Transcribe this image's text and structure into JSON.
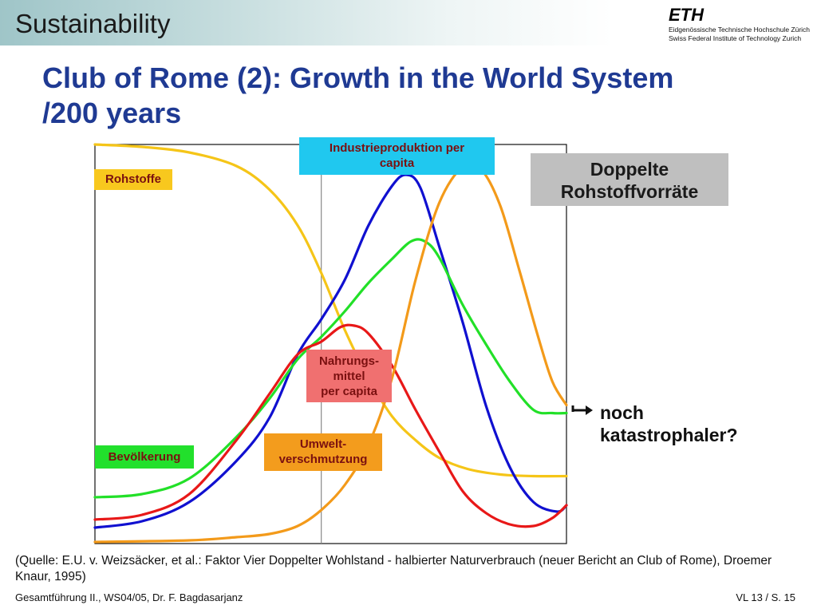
{
  "header": {
    "course_title": "Sustainability",
    "logo": {
      "name": "ETH",
      "line1": "Eidgenössische Technische Hochschule Zürich",
      "line2": "Swiss Federal Institute of Technology Zurich"
    }
  },
  "slide": {
    "title_line1": "Club of Rome (2): Growth in the World System",
    "title_line2": "/200 years"
  },
  "callouts": {
    "doppelte_line1": "Doppelte",
    "doppelte_line2": "Rohstoffvorräte",
    "noch_line1": "noch",
    "noch_line2": "katastrophaler?"
  },
  "chart_data": {
    "type": "line",
    "xlim": [
      0,
      100
    ],
    "ylim": [
      0,
      100
    ],
    "marker_x": 48,
    "grid": false,
    "labels": {
      "rohstoffe": "Rohstoffe",
      "industrie_line1": "Industrieproduktion per",
      "industrie_line2": "capita",
      "nahrung_line1": "Nahrungs-",
      "nahrung_line2": "mittel",
      "nahrung_line3": "per capita",
      "umwelt_line1": "Umwelt-",
      "umwelt_line2": "verschmutzung",
      "bevoelkerung": "Bevölkerung"
    },
    "series": [
      {
        "key": "rohstoffe",
        "color": "#f5c518",
        "points": [
          [
            0,
            100
          ],
          [
            10,
            99.4
          ],
          [
            20,
            98
          ],
          [
            30,
            94.6
          ],
          [
            37,
            88.7
          ],
          [
            43,
            79.7
          ],
          [
            48,
            67.8
          ],
          [
            53,
            53.5
          ],
          [
            58,
            41.5
          ],
          [
            63,
            31.9
          ],
          [
            68,
            25.9
          ],
          [
            73,
            21.5
          ],
          [
            79,
            18.7
          ],
          [
            86,
            17.3
          ],
          [
            93,
            16.9
          ],
          [
            100,
            16.9
          ]
        ]
      },
      {
        "key": "industrieproduktion",
        "color": "#1010d0",
        "points": [
          [
            0,
            4
          ],
          [
            10,
            5.6
          ],
          [
            20,
            10.4
          ],
          [
            30,
            20.7
          ],
          [
            37,
            31.5
          ],
          [
            43,
            47.4
          ],
          [
            48,
            56.2
          ],
          [
            53,
            66.1
          ],
          [
            58,
            79.7
          ],
          [
            63,
            89.6
          ],
          [
            66,
            92.4
          ],
          [
            69,
            89.2
          ],
          [
            73,
            74.5
          ],
          [
            78,
            55.4
          ],
          [
            83,
            34.3
          ],
          [
            88,
            19.1
          ],
          [
            93,
            10.4
          ],
          [
            98,
            8
          ],
          [
            100,
            9.6
          ]
        ]
      },
      {
        "key": "bevoelkerung",
        "color": "#22e028",
        "points": [
          [
            0,
            11.6
          ],
          [
            10,
            12.4
          ],
          [
            20,
            16.3
          ],
          [
            30,
            26.7
          ],
          [
            37,
            36.3
          ],
          [
            43,
            46.2
          ],
          [
            48,
            51.8
          ],
          [
            53,
            58.2
          ],
          [
            58,
            65.3
          ],
          [
            63,
            71.3
          ],
          [
            67,
            75.7
          ],
          [
            70,
            75.7
          ],
          [
            73,
            71.7
          ],
          [
            78,
            59.8
          ],
          [
            83,
            49.8
          ],
          [
            88,
            40.6
          ],
          [
            93,
            33.5
          ],
          [
            97,
            32.7
          ],
          [
            100,
            32.7
          ]
        ]
      },
      {
        "key": "nahrungsmittel",
        "color": "#e81818",
        "points": [
          [
            0,
            6
          ],
          [
            10,
            7.2
          ],
          [
            20,
            12.4
          ],
          [
            30,
            25.9
          ],
          [
            37,
            37.5
          ],
          [
            43,
            47.4
          ],
          [
            48,
            50.6
          ],
          [
            52,
            54.2
          ],
          [
            55,
            54.6
          ],
          [
            58,
            52.6
          ],
          [
            63,
            44.6
          ],
          [
            68,
            33.5
          ],
          [
            73,
            23.1
          ],
          [
            78,
            13.1
          ],
          [
            83,
            7.6
          ],
          [
            88,
            4.8
          ],
          [
            93,
            4.4
          ],
          [
            97,
            6.4
          ],
          [
            100,
            9.6
          ]
        ]
      },
      {
        "key": "umweltverschmutzung",
        "color": "#f39a1a",
        "points": [
          [
            0,
            0.4
          ],
          [
            20,
            0.8
          ],
          [
            30,
            1.6
          ],
          [
            37,
            2.4
          ],
          [
            43,
            4.4
          ],
          [
            48,
            8.4
          ],
          [
            53,
            14.7
          ],
          [
            58,
            24.7
          ],
          [
            63,
            41.4
          ],
          [
            68,
            66.1
          ],
          [
            73,
            85.3
          ],
          [
            78,
            94.4
          ],
          [
            82,
            93.6
          ],
          [
            86,
            84.5
          ],
          [
            90,
            68.5
          ],
          [
            94,
            51.8
          ],
          [
            97,
            40.6
          ],
          [
            100,
            34.7
          ]
        ]
      }
    ]
  },
  "footer": {
    "source_text": "(Quelle: E.U. v. Weizsäcker, et al.: Faktor Vier Doppelter Wohlstand - halbierter Naturverbrauch (neuer Bericht an Club of Rome), Droemer Knaur, 1995)",
    "left": "Gesamtführung II., WS04/05, Dr. F. Bagdasarjanz",
    "right": "VL 13 / S. 15"
  }
}
